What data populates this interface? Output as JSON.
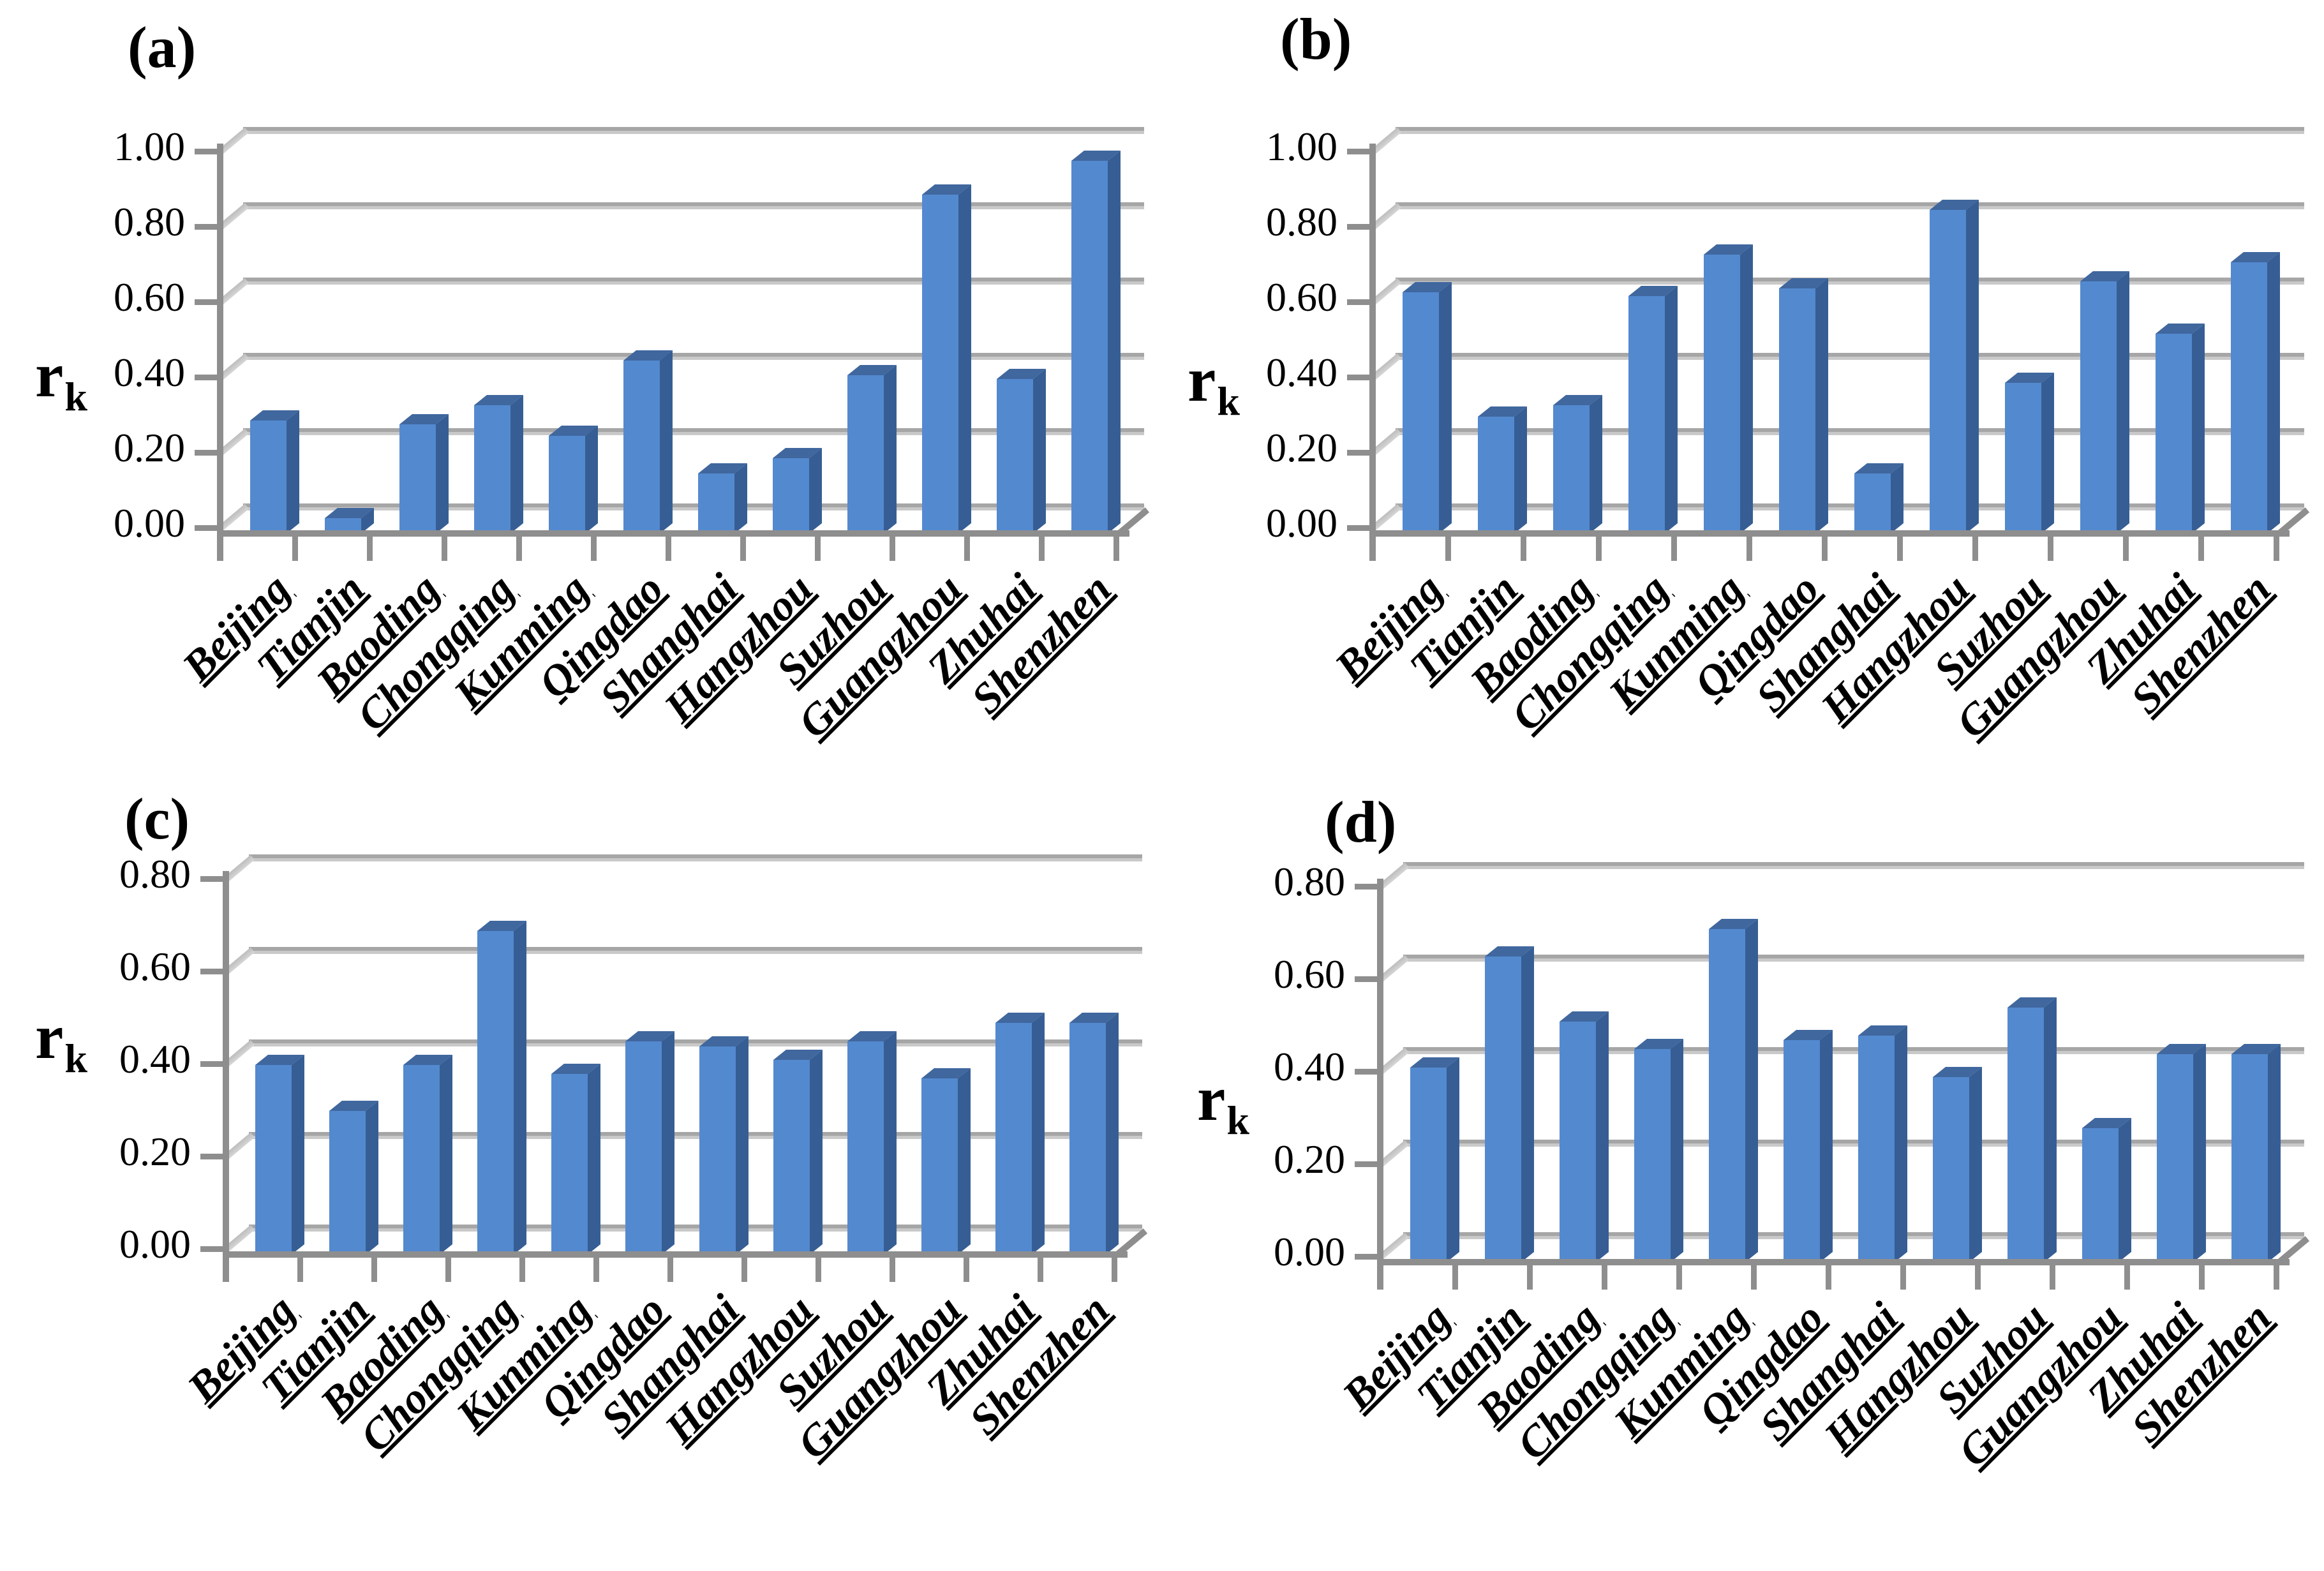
{
  "y_axis_label": {
    "base": "r",
    "subscript": "k"
  },
  "colors": {
    "bar_front": "#5389CF",
    "bar_side": "#365E94",
    "bar_top": "#40679E",
    "axis_gray": "#8E8E8E",
    "gridline_gray": "#A8A8A8",
    "text": "#000000"
  },
  "chart_data": [
    {
      "type": "bar",
      "style": "3d-column",
      "title": "(a)",
      "ylabel": "r_k",
      "ylim": [
        0,
        1.0
      ],
      "ytick_step": 0.2,
      "y_ticks": [
        "1.00",
        "0.80",
        "0.60",
        "0.40",
        "0.20",
        "0.00"
      ],
      "grid": true,
      "legend_position": "none",
      "categories": [
        "Beijing",
        "Tianjin",
        "Baoding",
        "Chongqing",
        "Kunming",
        "Qingdao",
        "Shanghai",
        "Hangzhou",
        "Suzhou",
        "Guangzhou",
        "Zhuhai",
        "Shenzhen"
      ],
      "values": [
        0.3,
        0.04,
        0.29,
        0.34,
        0.26,
        0.46,
        0.16,
        0.2,
        0.42,
        0.9,
        0.41,
        0.99
      ]
    },
    {
      "type": "bar",
      "style": "3d-column",
      "title": "(b)",
      "ylabel": "r_k",
      "ylim": [
        0,
        1.0
      ],
      "ytick_step": 0.2,
      "y_ticks": [
        "1.00",
        "0.80",
        "0.60",
        "0.40",
        "0.20",
        "0.00"
      ],
      "grid": true,
      "legend_position": "none",
      "categories": [
        "Beijing",
        "Tianjin",
        "Baoding",
        "Chongqing",
        "Kunming",
        "Qingdao",
        "Shanghai",
        "Hangzhou",
        "Suzhou",
        "Guangzhou",
        "Zhuhai",
        "Shenzhen"
      ],
      "values": [
        0.64,
        0.31,
        0.34,
        0.63,
        0.74,
        0.65,
        0.16,
        0.86,
        0.4,
        0.67,
        0.53,
        0.72
      ]
    },
    {
      "type": "bar",
      "style": "3d-column",
      "title": "(c)",
      "ylabel": "r_k",
      "ylim": [
        0,
        0.8
      ],
      "ytick_step": 0.2,
      "y_ticks": [
        "0.80",
        "0.60",
        "0.40",
        "0.20",
        "0.00"
      ],
      "grid": true,
      "legend_position": "none",
      "categories": [
        "Beijing",
        "Tianjin",
        "Baoding",
        "Chongqing",
        "Kunming",
        "Qingdao",
        "Shanghai",
        "Hangzhou",
        "Suzhou",
        "Guangzhou",
        "Zhuhai",
        "Shenzhen"
      ],
      "values": [
        0.41,
        0.31,
        0.41,
        0.7,
        0.39,
        0.46,
        0.45,
        0.42,
        0.46,
        0.38,
        0.5,
        0.5
      ]
    },
    {
      "type": "bar",
      "style": "3d-column",
      "title": "(d)",
      "ylabel": "r_k",
      "ylim": [
        0,
        0.8
      ],
      "ytick_step": 0.2,
      "y_ticks": [
        "0.80",
        "0.60",
        "0.40",
        "0.20",
        "0.00"
      ],
      "grid": true,
      "legend_position": "none",
      "categories": [
        "Beijing",
        "Tianjin",
        "Baoding",
        "Chongqing",
        "Kunming",
        "Qingdao",
        "Shanghai",
        "Hangzhou",
        "Suzhou",
        "Guangzhou",
        "Zhuhai",
        "Shenzhen"
      ],
      "values": [
        0.42,
        0.66,
        0.52,
        0.46,
        0.72,
        0.48,
        0.49,
        0.4,
        0.55,
        0.29,
        0.45,
        0.45
      ]
    }
  ]
}
